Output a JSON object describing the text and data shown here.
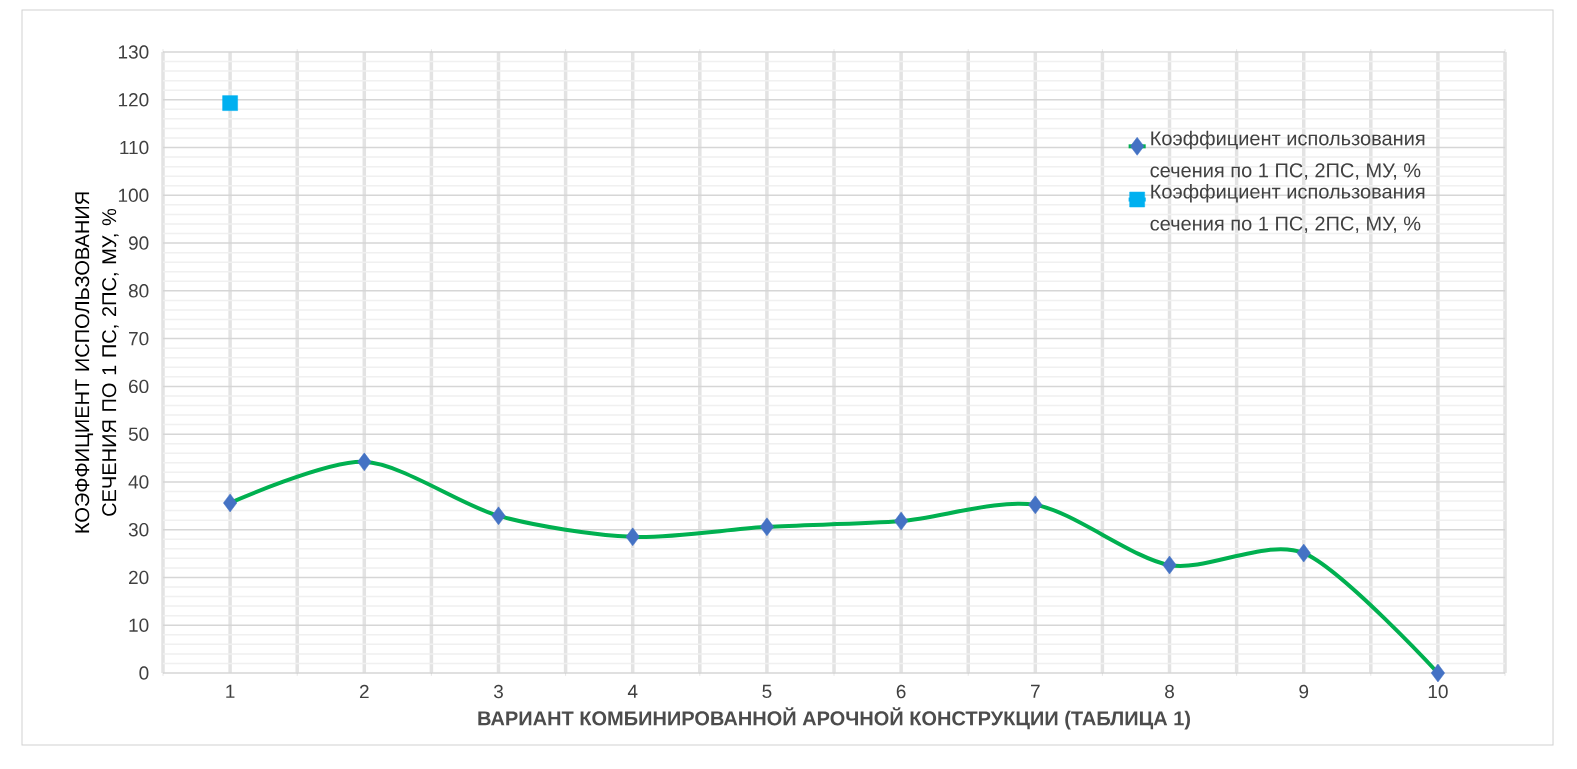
{
  "chart_data": {
    "type": "line",
    "xlabel": "ВАРИАНТ КОМБИНИРОВАННОЙ АРОЧНОЙ КОНСТРУКЦИИ (ТАБЛИЦА 1)",
    "ylabel": "КОЭФФИЦИЕНТ ИСПОЛЬЗОВАНИЯ СЕЧЕНИЯ ПО 1 ПС, 2ПС, МУ, %",
    "categories": [
      "1",
      "2",
      "3",
      "4",
      "5",
      "6",
      "7",
      "8",
      "9",
      "10"
    ],
    "series": [
      {
        "name": "Коэффициент использования сечения по 1 ПС, 2ПС, МУ, %",
        "color": "#00b050",
        "marker": "diamond",
        "values": [
          35.6,
          44.2,
          32.9,
          28.5,
          30.6,
          31.8,
          35.2,
          22.6,
          25.1,
          0
        ]
      },
      {
        "name": "Коэффициент использования сечения по 1 ПС, 2ПС, МУ, %",
        "color": "#00b0f0",
        "marker": "square",
        "values": [
          119.3,
          null,
          null,
          null,
          null,
          null,
          null,
          null,
          null,
          null
        ]
      }
    ],
    "ylim": [
      0,
      130
    ],
    "yticks": [
      0,
      10,
      20,
      30,
      40,
      50,
      60,
      70,
      80,
      90,
      100,
      110,
      120,
      130
    ],
    "grid": true,
    "legend": "right"
  }
}
